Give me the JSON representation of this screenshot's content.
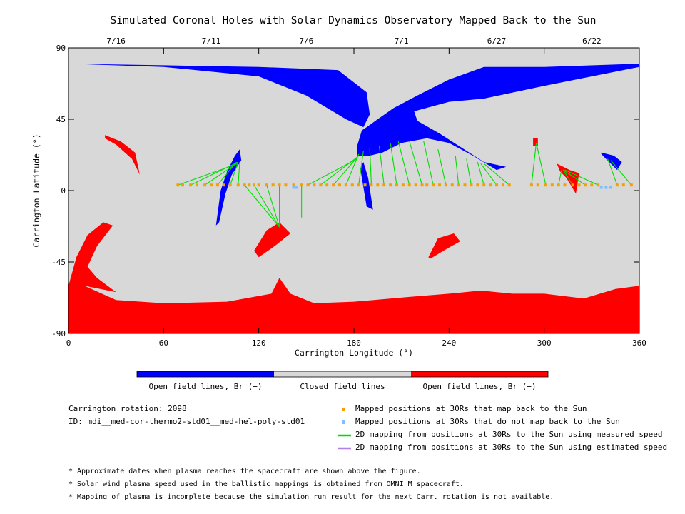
{
  "title": "Simulated Coronal Holes with Solar Dynamics Observatory Mapped Back to the Sun",
  "top_dates": [
    {
      "label": "7/16",
      "lon": 30
    },
    {
      "label": "7/11",
      "lon": 90
    },
    {
      "label": "7/6",
      "lon": 150
    },
    {
      "label": "7/1",
      "lon": 210
    },
    {
      "label": "6/27",
      "lon": 270
    },
    {
      "label": "6/22",
      "lon": 330
    }
  ],
  "colorbar": {
    "segments": [
      {
        "label": "Open field lines, Br (−)",
        "color": "#0000ff"
      },
      {
        "label": "Closed field lines",
        "color": "#d8d8d8"
      },
      {
        "label": "Open field lines, Br (+)",
        "color": "#ff0000"
      }
    ]
  },
  "info": {
    "rotation": "Carrington rotation: 2098",
    "id": "ID: mdi__med-cor-thermo2-std01__med-hel-poly-std01"
  },
  "legend": [
    {
      "label": "Mapped positions at 30Rs that map back to the Sun",
      "kind": "square",
      "color": "#f5a000"
    },
    {
      "label": "Mapped positions at 30Rs that do not map back to the Sun",
      "kind": "square",
      "color": "#7fbfff"
    },
    {
      "label": "2D mapping from positions at 30Rs to the Sun using measured speed",
      "kind": "line",
      "color": "#00dd00"
    },
    {
      "label": "2D mapping from positions at 30Rs to the Sun using estimated speed",
      "kind": "line",
      "color": "#b07fe8"
    }
  ],
  "footnotes": [
    "* Approximate dates when plasma reaches the spacecraft are shown above the figure.",
    "* Solar wind plasma speed used in the ballistic mappings is obtained from OMNI_M spacecraft.",
    "* Mapping of plasma is incomplete because the simulation run result for the next Carr. rotation is not available."
  ],
  "chart_data": {
    "type": "map",
    "xlabel": "Carrington Longitude (°)",
    "ylabel": "Carrington Latitude (°)",
    "xlim": [
      0,
      360
    ],
    "ylim": [
      -90,
      90
    ],
    "xticks": [
      0,
      60,
      120,
      180,
      240,
      300,
      360
    ],
    "yticks": [
      -90,
      -45,
      0,
      45,
      90
    ],
    "colors": {
      "open_neg": "#0000ff",
      "closed": "#d8d8d8",
      "open_pos": "#ff0000",
      "mapped": "#f5a000",
      "unmapped": "#7fbfff",
      "measured": "#00dd00"
    },
    "regions": {
      "north_polar_neg": [
        [
          0,
          90
        ],
        [
          360,
          90
        ],
        [
          360,
          80
        ],
        [
          300,
          78
        ],
        [
          262,
          78
        ],
        [
          240,
          70
        ],
        [
          220,
          60
        ],
        [
          205,
          52
        ],
        [
          195,
          45
        ],
        [
          188,
          40
        ],
        [
          185,
          38
        ],
        [
          182,
          28
        ],
        [
          182,
          22
        ],
        [
          190,
          22
        ],
        [
          198,
          24
        ],
        [
          210,
          30
        ],
        [
          226,
          33
        ],
        [
          240,
          30
        ],
        [
          255,
          22
        ],
        [
          270,
          13
        ],
        [
          276,
          15
        ],
        [
          262,
          18
        ],
        [
          248,
          27
        ],
        [
          234,
          36
        ],
        [
          220,
          44
        ],
        [
          218,
          50
        ],
        [
          240,
          56
        ],
        [
          262,
          58
        ],
        [
          300,
          66
        ],
        [
          360,
          78
        ],
        [
          360,
          90
        ]
      ],
      "north_polar_neg2": [
        [
          0,
          90
        ],
        [
          0,
          80
        ],
        [
          60,
          79
        ],
        [
          120,
          78
        ],
        [
          170,
          76
        ],
        [
          188,
          62
        ],
        [
          190,
          48
        ],
        [
          186,
          40
        ],
        [
          175,
          45
        ],
        [
          150,
          60
        ],
        [
          120,
          72
        ],
        [
          60,
          78
        ],
        [
          0,
          80
        ]
      ],
      "south_polar_pos": [
        [
          0,
          -90
        ],
        [
          360,
          -90
        ],
        [
          360,
          -60
        ],
        [
          345,
          -62
        ],
        [
          325,
          -68
        ],
        [
          300,
          -65
        ],
        [
          280,
          -65
        ],
        [
          260,
          -63
        ],
        [
          240,
          -65
        ],
        [
          215,
          -67
        ],
        [
          180,
          -70
        ],
        [
          155,
          -71
        ],
        [
          140,
          -65
        ],
        [
          133,
          -55
        ],
        [
          128,
          -65
        ],
        [
          100,
          -70
        ],
        [
          60,
          -71
        ],
        [
          30,
          -69
        ],
        [
          10,
          -60
        ],
        [
          0,
          -59
        ]
      ],
      "south_lobe_pos": [
        [
          0,
          -60
        ],
        [
          5,
          -42
        ],
        [
          12,
          -28
        ],
        [
          22,
          -20
        ],
        [
          28,
          -22
        ],
        [
          18,
          -35
        ],
        [
          12,
          -48
        ],
        [
          18,
          -55
        ],
        [
          30,
          -64
        ],
        [
          10,
          -60
        ]
      ],
      "pos_patch_1": [
        [
          23,
          35
        ],
        [
          33,
          31
        ],
        [
          42,
          24
        ],
        [
          45,
          10
        ],
        [
          40,
          20
        ],
        [
          30,
          29
        ],
        [
          23,
          33
        ]
      ],
      "pos_patch_2": [
        [
          117,
          -38
        ],
        [
          125,
          -25
        ],
        [
          133,
          -20
        ],
        [
          140,
          -27
        ],
        [
          130,
          -35
        ],
        [
          120,
          -42
        ]
      ],
      "pos_patch_3": [
        [
          227,
          -42
        ],
        [
          233,
          -30
        ],
        [
          243,
          -27
        ],
        [
          247,
          -32
        ],
        [
          238,
          -37
        ],
        [
          228,
          -43
        ]
      ],
      "pos_patch_4": [
        [
          308,
          17
        ],
        [
          316,
          13
        ],
        [
          322,
          11
        ],
        [
          320,
          -2
        ],
        [
          314,
          8
        ],
        [
          310,
          12
        ]
      ],
      "pos_patch_5": [
        [
          293,
          33
        ],
        [
          296,
          33
        ],
        [
          296,
          28
        ],
        [
          293,
          28
        ]
      ],
      "neg_patch_1": [
        [
          93,
          -22
        ],
        [
          96,
          0
        ],
        [
          100,
          12
        ],
        [
          105,
          22
        ],
        [
          108,
          26
        ],
        [
          109,
          19
        ],
        [
          103,
          10
        ],
        [
          99,
          -2
        ],
        [
          95,
          -20
        ]
      ],
      "neg_patch_2": [
        [
          336,
          24
        ],
        [
          344,
          22
        ],
        [
          349,
          18
        ],
        [
          346,
          13
        ],
        [
          339,
          20
        ],
        [
          336,
          23
        ]
      ],
      "neg_patch_3": [
        [
          184,
          14
        ],
        [
          188,
          -10
        ],
        [
          192,
          -12
        ],
        [
          189,
          8
        ],
        [
          186,
          18
        ]
      ]
    },
    "mapped_points": {
      "lat": 3.5,
      "lon": [
        69,
        72,
        77,
        81,
        86,
        90,
        94,
        98,
        102,
        107,
        111,
        114,
        117,
        120,
        125,
        129,
        133,
        137,
        142,
        147,
        151,
        155,
        159,
        163,
        167,
        171,
        175,
        179,
        183,
        187,
        191,
        195,
        199,
        203,
        207,
        211,
        215,
        219,
        223,
        226,
        230,
        234,
        238,
        242,
        246,
        250,
        254,
        258,
        262,
        266,
        270,
        274,
        278,
        292,
        296,
        301,
        305,
        309,
        313,
        318,
        322,
        326,
        330,
        334,
        346,
        350,
        355
      ]
    },
    "unmapped_points": {
      "lat": 2,
      "lon": [
        142,
        144,
        336,
        339,
        342
      ]
    },
    "measured_lines": [
      {
        "from": [
          69,
          3.5
        ],
        "to": [
          107,
          17
        ]
      },
      {
        "from": [
          77,
          3.5
        ],
        "to": [
          107,
          18
        ]
      },
      {
        "from": [
          86,
          3.5
        ],
        "to": [
          106,
          17
        ]
      },
      {
        "from": [
          94,
          3.5
        ],
        "to": [
          106,
          18
        ]
      },
      {
        "from": [
          102,
          3.5
        ],
        "to": [
          107,
          18
        ]
      },
      {
        "from": [
          107,
          3.5
        ],
        "to": [
          108,
          18
        ]
      },
      {
        "from": [
          111,
          3.5
        ],
        "to": [
          133,
          -23
        ]
      },
      {
        "from": [
          117,
          3.5
        ],
        "to": [
          133,
          -23
        ]
      },
      {
        "from": [
          125,
          3.5
        ],
        "to": [
          133,
          -23
        ]
      },
      {
        "from": [
          133,
          3.5
        ],
        "to": [
          133,
          -23
        ]
      },
      {
        "from": [
          147,
          3.5
        ],
        "to": [
          147,
          -17
        ]
      },
      {
        "from": [
          151,
          3.5
        ],
        "to": [
          182,
          20
        ]
      },
      {
        "from": [
          159,
          3.5
        ],
        "to": [
          182,
          21
        ]
      },
      {
        "from": [
          167,
          3.5
        ],
        "to": [
          183,
          22
        ]
      },
      {
        "from": [
          175,
          3.5
        ],
        "to": [
          183,
          23
        ]
      },
      {
        "from": [
          183,
          3.5
        ],
        "to": [
          186,
          25
        ]
      },
      {
        "from": [
          191,
          3.5
        ],
        "to": [
          190,
          27
        ]
      },
      {
        "from": [
          199,
          3.5
        ],
        "to": [
          196,
          28
        ]
      },
      {
        "from": [
          207,
          3.5
        ],
        "to": [
          203,
          30
        ]
      },
      {
        "from": [
          215,
          3.5
        ],
        "to": [
          208,
          31
        ]
      },
      {
        "from": [
          223,
          3.5
        ],
        "to": [
          215,
          31
        ]
      },
      {
        "from": [
          230,
          3.5
        ],
        "to": [
          224,
          31
        ]
      },
      {
        "from": [
          238,
          3.5
        ],
        "to": [
          233,
          26
        ]
      },
      {
        "from": [
          246,
          3.5
        ],
        "to": [
          244,
          22
        ]
      },
      {
        "from": [
          254,
          3.5
        ],
        "to": [
          251,
          20
        ]
      },
      {
        "from": [
          262,
          3.5
        ],
        "to": [
          258,
          18
        ]
      },
      {
        "from": [
          270,
          3.5
        ],
        "to": [
          260,
          17
        ]
      },
      {
        "from": [
          278,
          3.5
        ],
        "to": [
          262,
          17
        ]
      },
      {
        "from": [
          292,
          3.5
        ],
        "to": [
          295,
          30
        ]
      },
      {
        "from": [
          301,
          3.5
        ],
        "to": [
          295,
          30
        ]
      },
      {
        "from": [
          309,
          3.5
        ],
        "to": [
          311,
          13
        ]
      },
      {
        "from": [
          318,
          3.5
        ],
        "to": [
          312,
          13
        ]
      },
      {
        "from": [
          326,
          3.5
        ],
        "to": [
          312,
          13
        ]
      },
      {
        "from": [
          334,
          3.5
        ],
        "to": [
          313,
          13
        ]
      },
      {
        "from": [
          346,
          3.5
        ],
        "to": [
          340,
          20
        ]
      },
      {
        "from": [
          355,
          3.5
        ],
        "to": [
          342,
          19
        ]
      }
    ]
  }
}
